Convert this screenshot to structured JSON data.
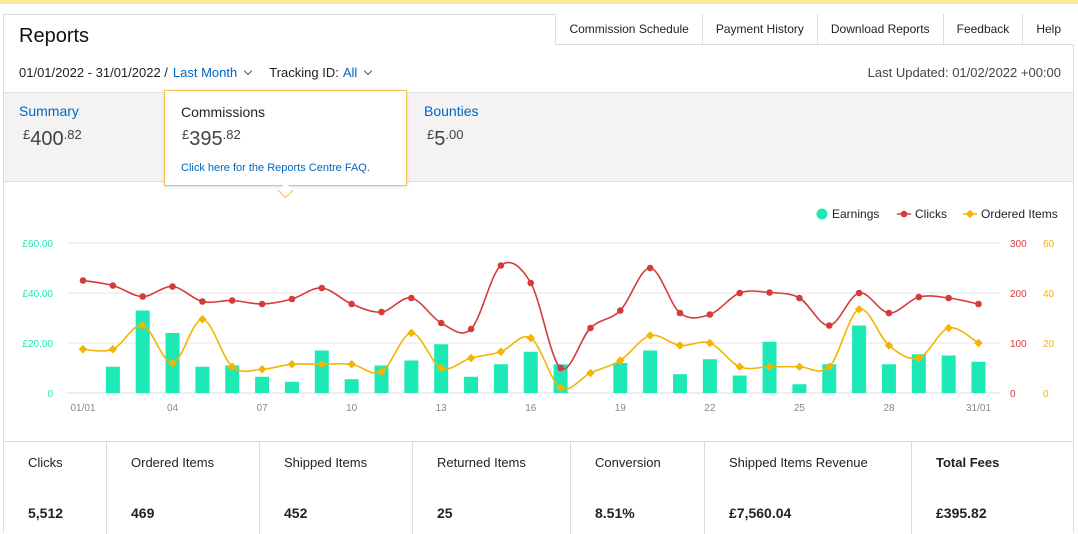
{
  "header": {
    "title": "Reports",
    "tabs": [
      "Commission Schedule",
      "Payment History",
      "Download Reports",
      "Feedback",
      "Help"
    ]
  },
  "filters": {
    "date_range": "01/01/2022 - 31/01/2022 /",
    "period": "Last Month",
    "tracking_label": "Tracking ID:",
    "tracking_value": "All",
    "last_updated": "Last Updated: 01/02/2022 +00:00"
  },
  "summary": {
    "items": [
      {
        "label": "Summary",
        "currency": "£",
        "int": "400",
        "dec": ".82"
      },
      {
        "label": "Commissions",
        "currency": "£",
        "int": "395",
        "dec": ".82"
      },
      {
        "label": "Bounties",
        "currency": "£",
        "int": "5",
        "dec": ".00"
      }
    ],
    "faq_link": "Click here for the Reports Centre FAQ."
  },
  "colors": {
    "earnings": "#1de9b6",
    "clicks": "#d63b3b",
    "ordered": "#f4b400",
    "link": "#0066c0"
  },
  "chart_data": {
    "type": "bar",
    "legend": [
      "Earnings",
      "Clicks",
      "Ordered Items"
    ],
    "legend_placement": "top-right",
    "grid": true,
    "x_ticks": [
      "01/01",
      "04",
      "07",
      "10",
      "13",
      "16",
      "19",
      "22",
      "25",
      "28",
      "31/01"
    ],
    "y_left_ticks": [
      "£60.00",
      "£40.00",
      "£20.00",
      "0"
    ],
    "y_right_clicks_ticks": [
      "300",
      "200",
      "100",
      "0"
    ],
    "y_right_items_ticks": [
      "60",
      "40",
      "20",
      "0"
    ],
    "ylim_earnings": [
      0,
      60
    ],
    "ylim_clicks": [
      0,
      300
    ],
    "ylim_items": [
      0,
      60
    ],
    "series": [
      {
        "name": "Earnings",
        "values": [
          0,
          10.5,
          33,
          24,
          10.5,
          11,
          6.5,
          4.5,
          17,
          5.5,
          11,
          13,
          19.5,
          6.5,
          11.5,
          16.5,
          11.5,
          0,
          12,
          17,
          7.5,
          13.5,
          7,
          20.5,
          3.5,
          11.5,
          27,
          11.5,
          15.5,
          15,
          12.5
        ]
      },
      {
        "name": "Clicks",
        "values": [
          225,
          215,
          193,
          213,
          183,
          185,
          178,
          188,
          210,
          178,
          162,
          190,
          140,
          128,
          255,
          220,
          50,
          130,
          165,
          250,
          160,
          157,
          200,
          201,
          190,
          135,
          200,
          160,
          192,
          190,
          178
        ]
      },
      {
        "name": "Ordered Items",
        "values": [
          17.5,
          17.5,
          27,
          12,
          29.5,
          10.5,
          9.5,
          11.5,
          11.5,
          11.5,
          8.5,
          24,
          10,
          14,
          16.5,
          22,
          2,
          8,
          13,
          23,
          19,
          20,
          10.5,
          10.5,
          10.5,
          10.5,
          33.5,
          19,
          14,
          26,
          20
        ]
      }
    ]
  },
  "stats": [
    {
      "label": "Clicks",
      "value": "5,512"
    },
    {
      "label": "Ordered Items",
      "value": "469"
    },
    {
      "label": "Shipped Items",
      "value": "452"
    },
    {
      "label": "Returned Items",
      "value": "25"
    },
    {
      "label": "Conversion",
      "value": "8.51%"
    },
    {
      "label": "Shipped Items Revenue",
      "value": "£7,560.04"
    },
    {
      "label": "Total Fees",
      "value": "£395.82"
    }
  ]
}
